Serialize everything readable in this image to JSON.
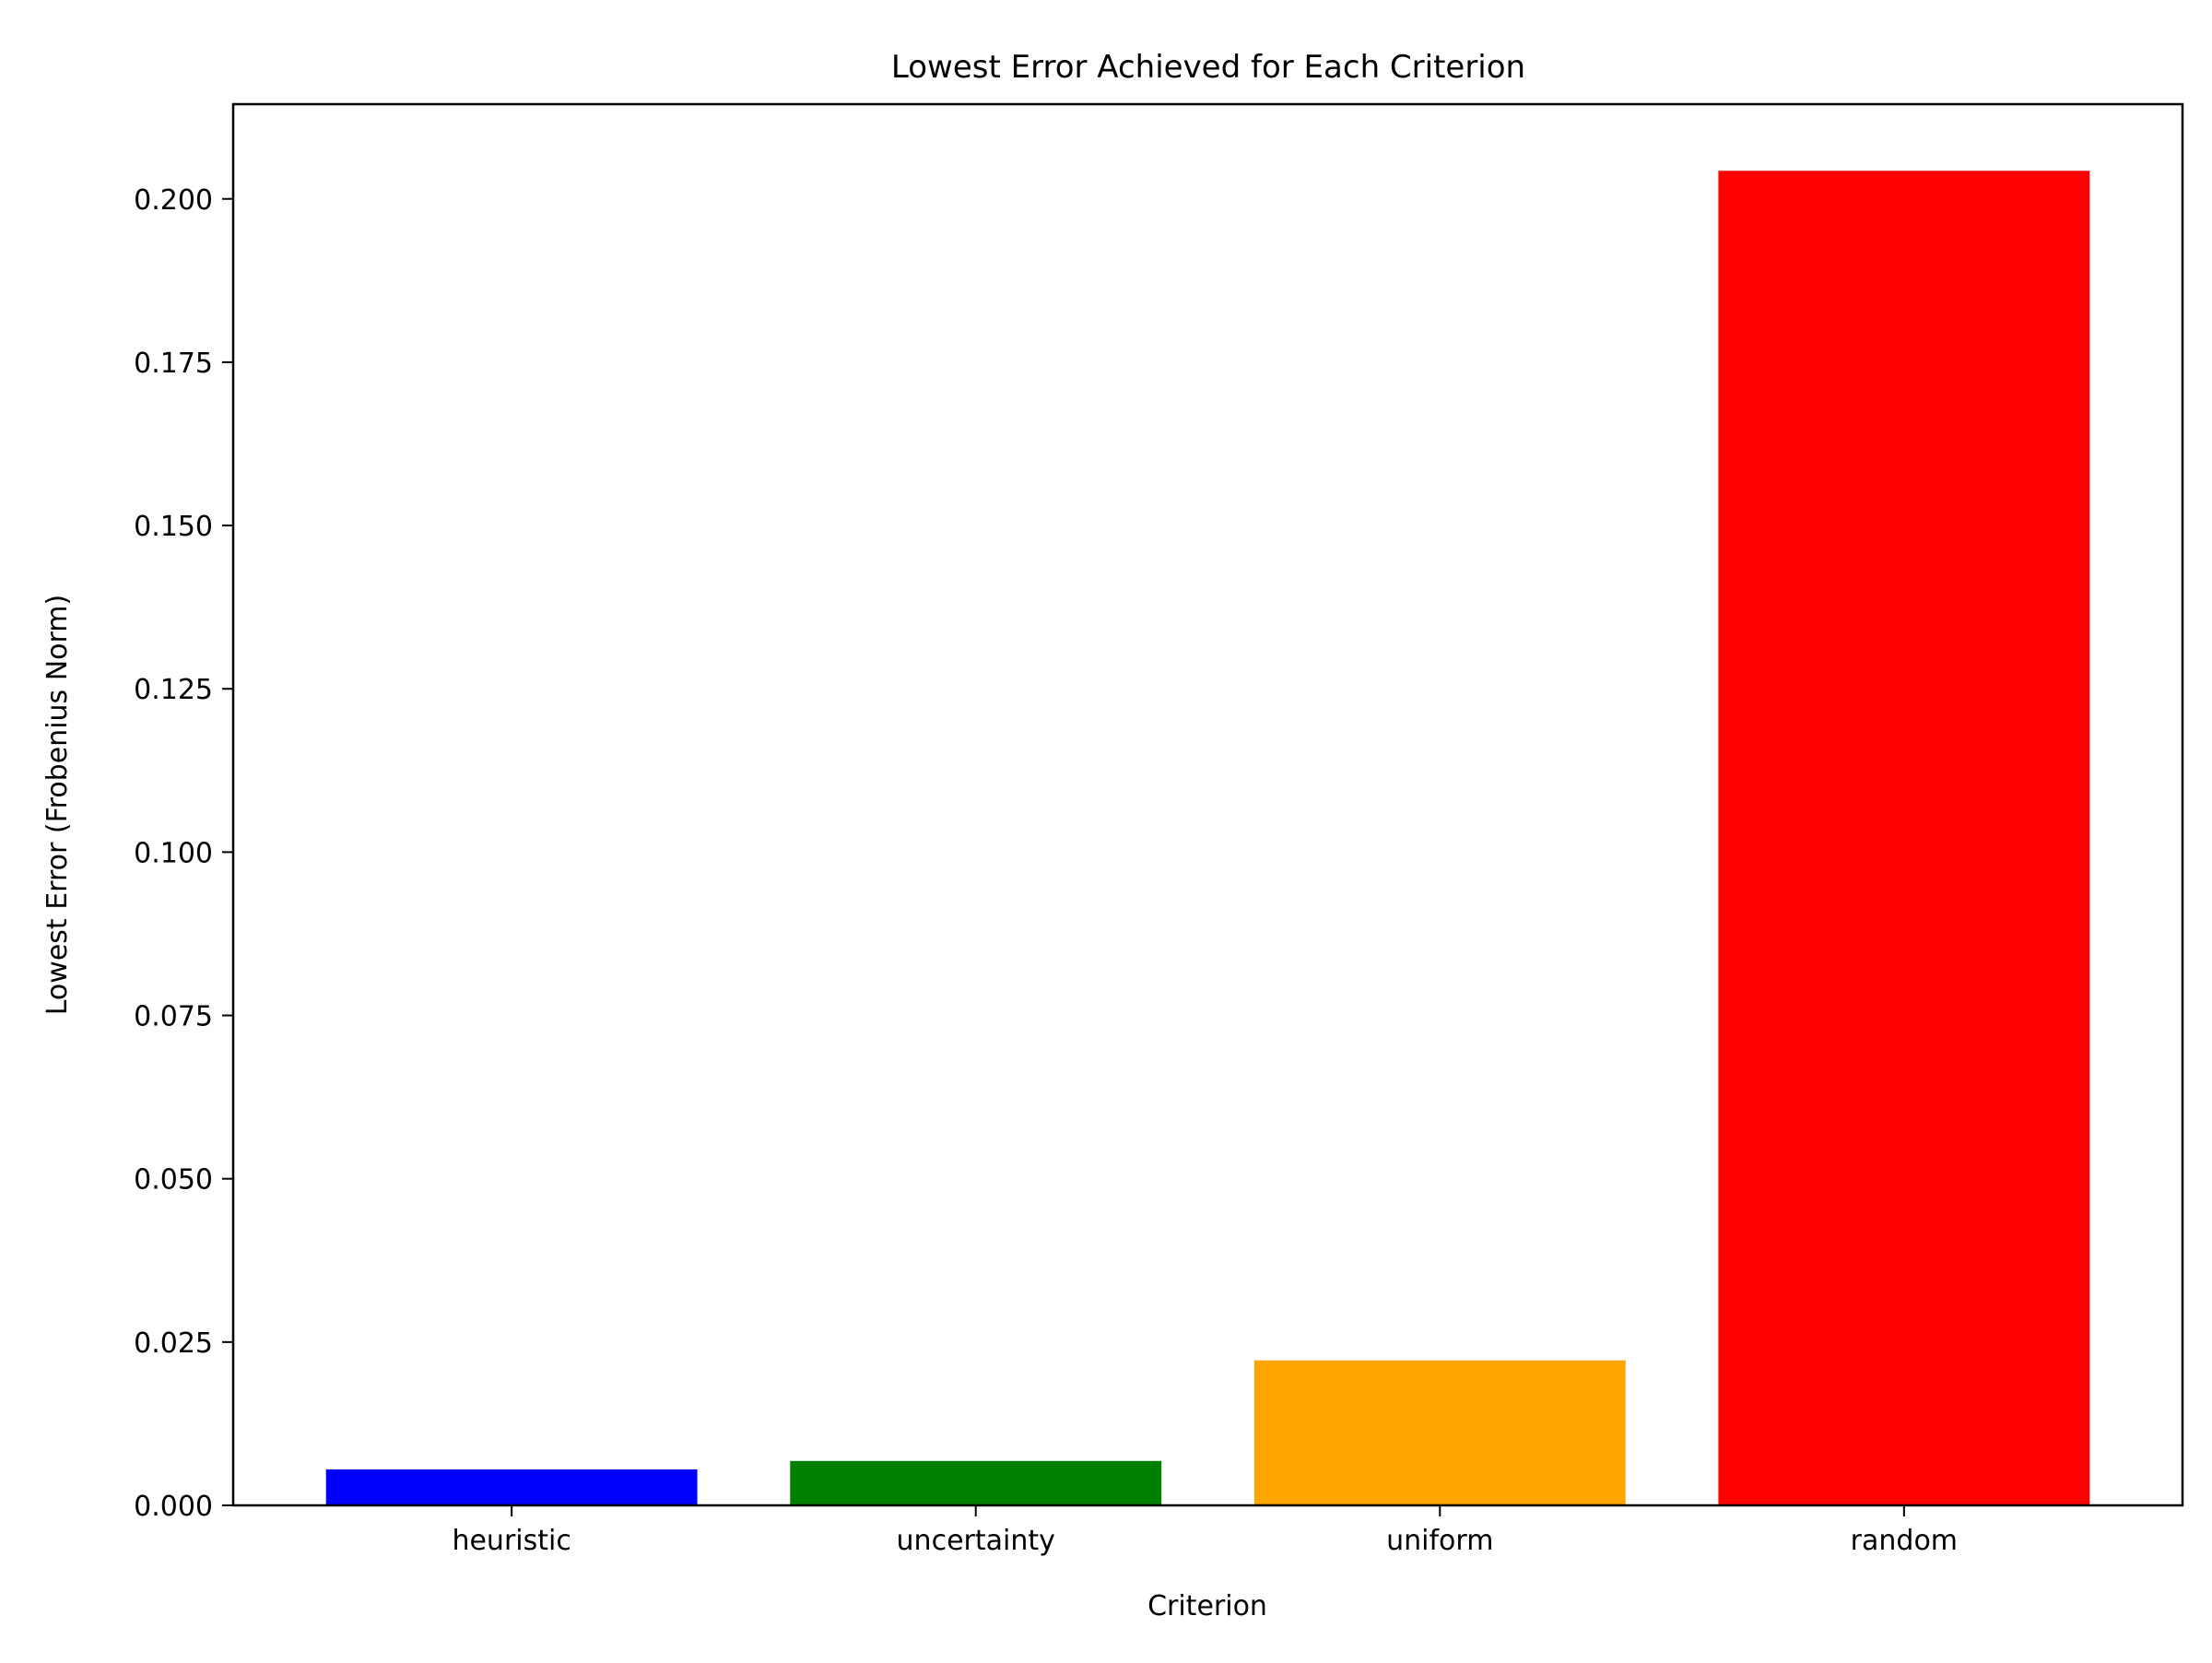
{
  "chart_data": {
    "type": "bar",
    "title": "Lowest Error Achieved for Each Criterion",
    "xlabel": "Criterion",
    "ylabel": "Lowest Error (Frobenius Norm)",
    "categories": [
      "heuristic",
      "uncertainty",
      "uniform",
      "random"
    ],
    "values": [
      0.0055,
      0.0068,
      0.0222,
      0.2043
    ],
    "colors": [
      "#0000ff",
      "#008000",
      "#ffa500",
      "#ff0000"
    ],
    "ylim": [
      0,
      0.2145
    ],
    "yticks": [
      0.0,
      0.025,
      0.05,
      0.075,
      0.1,
      0.125,
      0.15,
      0.175,
      0.2
    ],
    "ytick_labels": [
      "0.000",
      "0.025",
      "0.050",
      "0.075",
      "0.100",
      "0.125",
      "0.150",
      "0.175",
      "0.200"
    ],
    "grid": false,
    "legend": "none"
  }
}
